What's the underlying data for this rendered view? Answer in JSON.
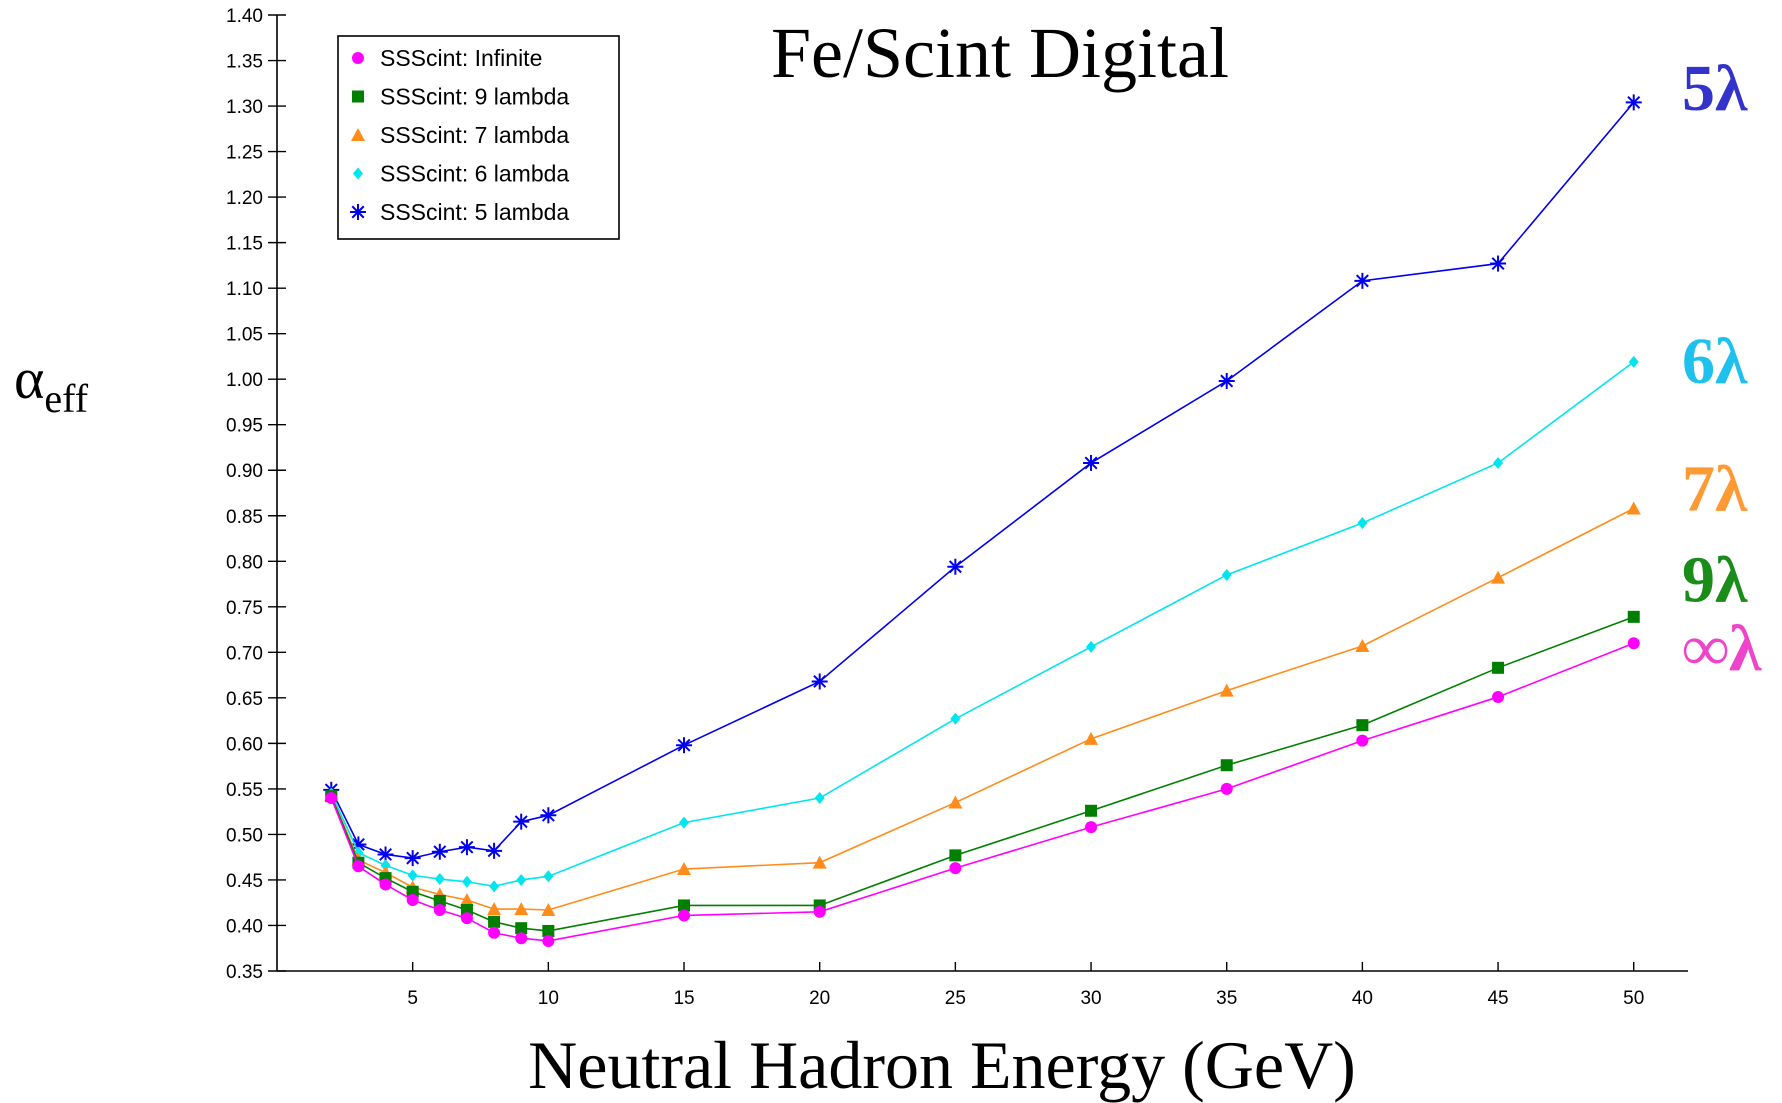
{
  "colors": {
    "infinite": "#ff00ff",
    "nine": "#007f00",
    "seven": "#ff8c1a",
    "six": "#00e5ee",
    "five": "#0000ee",
    "annot_five": "#3333cc",
    "annot_six": "#1ec0ee",
    "annot_seven": "#ff9933",
    "annot_nine": "#1a8c1a",
    "annot_inf": "#ee44cc"
  },
  "chart_data": {
    "type": "line",
    "title": "Fe/Scint Digital",
    "xlabel": "Neutral Hadron Energy (GeV)",
    "ylabel_main": "α",
    "ylabel_sub": "eff",
    "xlim": [
      0,
      52
    ],
    "ylim": [
      0.35,
      1.4
    ],
    "grid": false,
    "legend_position": "top-left",
    "xticks": [
      5,
      10,
      15,
      20,
      25,
      30,
      35,
      40,
      45,
      50
    ],
    "yticks": [
      0.35,
      0.4,
      0.45,
      0.5,
      0.55,
      0.6,
      0.65,
      0.7,
      0.75,
      0.8,
      0.85,
      0.9,
      0.95,
      1.0,
      1.05,
      1.1,
      1.15,
      1.2,
      1.25,
      1.3,
      1.35,
      1.4
    ],
    "x": [
      2,
      3,
      4,
      5,
      6,
      7,
      8,
      9,
      10,
      15,
      20,
      25,
      30,
      35,
      40,
      45,
      50
    ],
    "series": [
      {
        "name": "SSScint: Infinite",
        "marker": "circle",
        "color_key": "infinite",
        "values": [
          0.54,
          0.465,
          0.445,
          0.428,
          0.417,
          0.408,
          0.392,
          0.386,
          0.383,
          0.411,
          0.415,
          0.463,
          0.508,
          0.55,
          0.603,
          0.651,
          0.71
        ]
      },
      {
        "name": "SSScint: 9 lambda",
        "marker": "square",
        "color_key": "nine",
        "values": [
          0.542,
          0.469,
          0.452,
          0.437,
          0.427,
          0.417,
          0.404,
          0.397,
          0.394,
          0.422,
          0.422,
          0.477,
          0.526,
          0.576,
          0.62,
          0.683,
          0.739
        ]
      },
      {
        "name": "SSScint: 7 lambda",
        "marker": "triangle",
        "color_key": "seven",
        "values": [
          0.543,
          0.472,
          0.458,
          0.442,
          0.434,
          0.428,
          0.418,
          0.418,
          0.417,
          0.462,
          0.469,
          0.535,
          0.605,
          0.658,
          0.707,
          0.782,
          0.858
        ]
      },
      {
        "name": "SSScint: 6 lambda",
        "marker": "diamond",
        "color_key": "six",
        "values": [
          0.545,
          0.48,
          0.466,
          0.455,
          0.451,
          0.448,
          0.443,
          0.45,
          0.454,
          0.513,
          0.54,
          0.627,
          0.706,
          0.785,
          0.842,
          0.908,
          1.019
        ]
      },
      {
        "name": "SSScint: 5 lambda",
        "marker": "asterisk",
        "color_key": "five",
        "values": [
          0.549,
          0.489,
          0.478,
          0.474,
          0.481,
          0.486,
          0.482,
          0.514,
          0.521,
          0.598,
          0.668,
          0.794,
          0.908,
          0.998,
          1.108,
          1.127,
          1.304
        ]
      }
    ],
    "annotations": [
      {
        "text": "5λ",
        "y": 1.32,
        "color_key": "annot_five"
      },
      {
        "text": "6λ",
        "y": 1.02,
        "color_key": "annot_six"
      },
      {
        "text": "7λ",
        "y": 0.88,
        "color_key": "annot_seven"
      },
      {
        "text": "9λ",
        "y": 0.78,
        "color_key": "annot_nine"
      },
      {
        "text": "∞λ",
        "y": 0.705,
        "color_key": "annot_inf"
      }
    ]
  }
}
